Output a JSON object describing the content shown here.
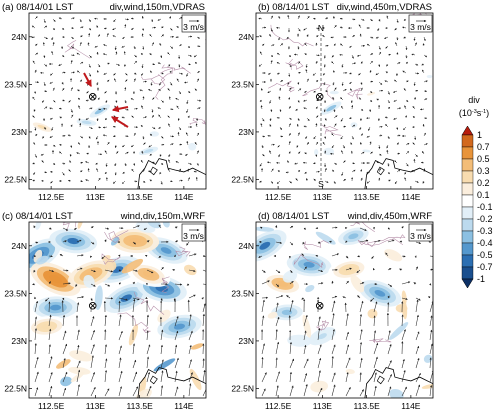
{
  "chart_data": [
    {
      "type": "heatmap",
      "panel": "(a)",
      "date_label": "08/14/01 LST",
      "right_label": "div,wind,150m,VDRAS",
      "x_ticks": [
        "112.5E",
        "113E",
        "113.5E",
        "114E"
      ],
      "y_ticks": [
        "24N",
        "23.5N",
        "23N",
        "22.5N"
      ],
      "xlim": [
        112.25,
        114.25
      ],
      "ylim": [
        22.4,
        24.25
      ],
      "ref_vector": "3 m/s",
      "site_marker": [
        112.97,
        23.37
      ],
      "features": [
        {
          "kind": "convergence",
          "lon": 113.05,
          "lat": 23.22,
          "value": -0.3
        },
        {
          "kind": "convergence",
          "lon": 112.9,
          "lat": 23.1,
          "value": -0.2
        },
        {
          "kind": "convergence",
          "lon": 113.6,
          "lat": 22.8,
          "value": -0.2
        },
        {
          "kind": "divergence",
          "lon": 112.4,
          "lat": 23.05,
          "value": 0.2
        }
      ],
      "arrows_annotation": [
        "red arrow from north",
        "red arrow from east",
        "red arrow from southeast"
      ]
    },
    {
      "type": "heatmap",
      "panel": "(b)",
      "date_label": "08/14/01 LST",
      "right_label": "div,wind,450m,VDRAS",
      "x_ticks": [
        "112.5E",
        "113E",
        "113.5E",
        "114E"
      ],
      "y_ticks": [
        "24N",
        "23.5N",
        "23N",
        "22.5N"
      ],
      "xlim": [
        112.25,
        114.25
      ],
      "ylim": [
        22.4,
        24.25
      ],
      "ref_vector": "3 m/s",
      "site_marker": [
        112.97,
        23.37
      ],
      "section_line": {
        "lon": 112.93,
        "north_label": "N",
        "south_label": "S"
      },
      "features": [
        {
          "kind": "convergence",
          "lon": 113.1,
          "lat": 23.25,
          "value": -0.3
        },
        {
          "kind": "convergence",
          "lon": 113.5,
          "lat": 22.8,
          "value": -0.1
        },
        {
          "kind": "divergence",
          "lon": 113.55,
          "lat": 23.4,
          "value": 0.1
        }
      ]
    },
    {
      "type": "heatmap",
      "panel": "(c)",
      "date_label": "08/14/01 LST",
      "right_label": "wind,div,150m,WRF",
      "x_ticks": [
        "112.5E",
        "113E",
        "113.5E",
        "114E"
      ],
      "y_ticks": [
        "24N",
        "23.5N",
        "23N",
        "22.5N"
      ],
      "xlim": [
        112.25,
        114.25
      ],
      "ylim": [
        22.4,
        24.25
      ],
      "ref_vector": "3 m/s",
      "site_marker": [
        112.97,
        23.37
      ],
      "features": [
        {
          "kind": "convergence",
          "lon": 112.35,
          "lat": 23.9,
          "value": -0.6
        },
        {
          "kind": "convergence",
          "lon": 112.75,
          "lat": 24.05,
          "value": -0.5
        },
        {
          "kind": "convergence",
          "lon": 113.25,
          "lat": 23.75,
          "value": -0.5
        },
        {
          "kind": "convergence",
          "lon": 113.8,
          "lat": 23.95,
          "value": -0.4
        },
        {
          "kind": "convergence",
          "lon": 112.55,
          "lat": 23.35,
          "value": -0.4
        },
        {
          "kind": "convergence",
          "lon": 113.35,
          "lat": 23.45,
          "value": -0.5
        },
        {
          "kind": "convergence",
          "lon": 113.75,
          "lat": 23.55,
          "value": -0.6
        },
        {
          "kind": "convergence",
          "lon": 113.95,
          "lat": 23.15,
          "value": -0.4
        },
        {
          "kind": "divergence",
          "lon": 112.55,
          "lat": 23.65,
          "value": 0.7
        },
        {
          "kind": "divergence",
          "lon": 113.45,
          "lat": 24.05,
          "value": 0.5
        },
        {
          "kind": "divergence",
          "lon": 112.95,
          "lat": 23.7,
          "value": 0.5
        },
        {
          "kind": "divergence",
          "lon": 113.6,
          "lat": 23.7,
          "value": 0.4
        },
        {
          "kind": "divergence",
          "lon": 112.45,
          "lat": 23.15,
          "value": 0.3
        }
      ]
    },
    {
      "type": "heatmap",
      "panel": "(d)",
      "date_label": "08/14/01 LST",
      "right_label": "wind,div,450m,WRF",
      "x_ticks": [
        "112.5E",
        "113E",
        "113.5E",
        "114E"
      ],
      "y_ticks": [
        "24N",
        "23.5N",
        "23N",
        "22.5N"
      ],
      "xlim": [
        112.25,
        114.25
      ],
      "ylim": [
        22.4,
        24.25
      ],
      "ref_vector": "3 m/s",
      "site_marker": [
        112.97,
        23.37
      ],
      "features": [
        {
          "kind": "convergence",
          "lon": 112.35,
          "lat": 24.0,
          "value": -0.5
        },
        {
          "kind": "convergence",
          "lon": 112.85,
          "lat": 23.8,
          "value": -0.4
        },
        {
          "kind": "convergence",
          "lon": 113.35,
          "lat": 24.1,
          "value": -0.3
        },
        {
          "kind": "convergence",
          "lon": 113.65,
          "lat": 23.5,
          "value": -0.4
        },
        {
          "kind": "convergence",
          "lon": 112.6,
          "lat": 23.3,
          "value": -0.3
        },
        {
          "kind": "convergence",
          "lon": 113.0,
          "lat": 23.05,
          "value": -0.2
        },
        {
          "kind": "divergence",
          "lon": 112.55,
          "lat": 23.6,
          "value": 0.4
        },
        {
          "kind": "divergence",
          "lon": 113.3,
          "lat": 23.75,
          "value": 0.3
        },
        {
          "kind": "divergence",
          "lon": 113.8,
          "lat": 23.9,
          "value": 0.2
        }
      ]
    }
  ],
  "colorbar": {
    "title": "div",
    "unit_base": "(10",
    "unit_exp1": "-3",
    "unit_mid": "s",
    "unit_exp2": "-1",
    "unit_close": ")",
    "labels": [
      "1",
      "0.7",
      "0.5",
      "0.3",
      "0.2",
      "0.1",
      "-0.1",
      "-0.2",
      "-0.3",
      "-0.4",
      "-0.5",
      "-0.7",
      "-1"
    ],
    "colors": [
      "#b81d0e",
      "#d2691e",
      "#e8943a",
      "#f3bd78",
      "#f8dcb0",
      "#fbeedd",
      "#ffffff",
      "#e2eff8",
      "#bcdaee",
      "#8cc0e2",
      "#5598cd",
      "#2c6fb2",
      "#1a4f8e",
      "#0d3066"
    ]
  }
}
